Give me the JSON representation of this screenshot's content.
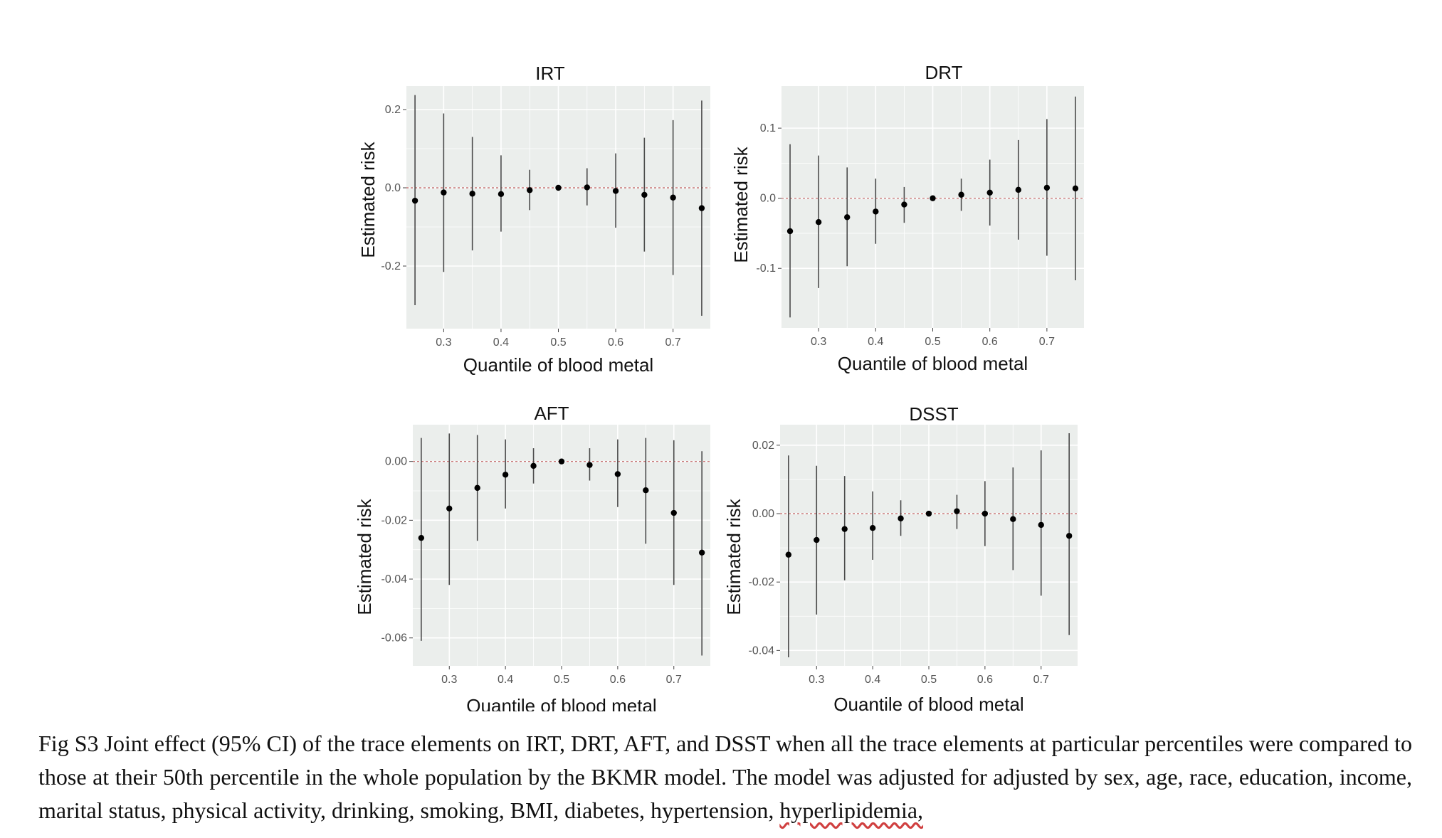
{
  "caption": {
    "text": "Fig S3 Joint effect (95% CI) of the trace elements on IRT, DRT, AFT, and DSST when all the trace elements at particular percentiles were compared to those at their 50th percentile in the whole population by the BKMR model. The model was adjusted for adjusted by sex, age, race, education, income, marital status, physical activity, drinking, smoking, BMI, diabetes, hypertension,",
    "last_word": "hyperlipidemia,"
  },
  "colors": {
    "panel_bg": "#ebeeec",
    "grid": "#ffffff",
    "reference_line": "#c06060",
    "point": "#000000",
    "interval": "#4a4a4a"
  },
  "chart_data": [
    {
      "type": "scatter",
      "title": "IRT",
      "xlabel": "Quantile of blood metal",
      "ylabel": "Estimated risk",
      "xlim": [
        0.235,
        0.765
      ],
      "ylim": [
        -0.36,
        0.26
      ],
      "xticks": [
        0.3,
        0.4,
        0.5,
        0.6,
        0.7
      ],
      "xtick_labels": [
        "0.3",
        "0.4",
        "0.5",
        "0.6",
        "0.7"
      ],
      "yticks": [
        -0.2,
        0.0,
        0.2
      ],
      "ytick_labels": [
        "-0.2",
        "0.0",
        "0.2"
      ],
      "reference_line": 0,
      "grid": true,
      "x": [
        0.25,
        0.3,
        0.35,
        0.4,
        0.45,
        0.5,
        0.55,
        0.6,
        0.65,
        0.7,
        0.75
      ],
      "y": [
        -0.033,
        -0.012,
        -0.015,
        -0.016,
        -0.006,
        0.0,
        0.001,
        -0.008,
        -0.018,
        -0.025,
        -0.052
      ],
      "lower": [
        -0.3,
        -0.215,
        -0.16,
        -0.112,
        -0.057,
        0.0,
        -0.045,
        -0.102,
        -0.163,
        -0.223,
        -0.327
      ],
      "upper": [
        0.237,
        0.19,
        0.13,
        0.083,
        0.046,
        0.0,
        0.05,
        0.088,
        0.128,
        0.173,
        0.223
      ]
    },
    {
      "type": "scatter",
      "title": "DRT",
      "xlabel": "Quantile of blood metal",
      "ylabel": "Estimated risk",
      "xlim": [
        0.235,
        0.765
      ],
      "ylim": [
        -0.185,
        0.16
      ],
      "xticks": [
        0.3,
        0.4,
        0.5,
        0.6,
        0.7
      ],
      "xtick_labels": [
        "0.3",
        "0.4",
        "0.5",
        "0.6",
        "0.7"
      ],
      "yticks": [
        -0.1,
        0.0,
        0.1
      ],
      "ytick_labels": [
        "-0.1",
        "0.0",
        "0.1"
      ],
      "reference_line": 0,
      "grid": true,
      "x": [
        0.25,
        0.3,
        0.35,
        0.4,
        0.45,
        0.5,
        0.55,
        0.6,
        0.65,
        0.7,
        0.75
      ],
      "y": [
        -0.047,
        -0.034,
        -0.027,
        -0.019,
        -0.009,
        0.0,
        0.005,
        0.008,
        0.012,
        0.015,
        0.014
      ],
      "lower": [
        -0.17,
        -0.128,
        -0.097,
        -0.065,
        -0.035,
        0.0,
        -0.018,
        -0.039,
        -0.059,
        -0.082,
        -0.117
      ],
      "upper": [
        0.077,
        0.061,
        0.044,
        0.028,
        0.016,
        0.0,
        0.028,
        0.055,
        0.083,
        0.113,
        0.145
      ]
    },
    {
      "type": "scatter",
      "title": "AFT",
      "xlabel": "Quantile of blood metal",
      "ylabel": "Estimated risk",
      "xlim": [
        0.235,
        0.765
      ],
      "ylim": [
        -0.0695,
        0.0125
      ],
      "xticks": [
        0.3,
        0.4,
        0.5,
        0.6,
        0.7
      ],
      "xtick_labels": [
        "0.3",
        "0.4",
        "0.5",
        "0.6",
        "0.7"
      ],
      "yticks": [
        -0.06,
        -0.04,
        -0.02,
        0.0
      ],
      "ytick_labels": [
        "-0.06",
        "-0.04",
        "-0.02",
        "0.00"
      ],
      "reference_line": 0,
      "grid": true,
      "x": [
        0.25,
        0.3,
        0.35,
        0.4,
        0.45,
        0.5,
        0.55,
        0.6,
        0.65,
        0.7,
        0.75
      ],
      "y": [
        -0.026,
        -0.016,
        -0.009,
        -0.0045,
        -0.0015,
        0.0,
        -0.0012,
        -0.0043,
        -0.0098,
        -0.0175,
        -0.031
      ],
      "lower": [
        -0.061,
        -0.042,
        -0.027,
        -0.016,
        -0.0075,
        0.0,
        -0.0065,
        -0.0155,
        -0.028,
        -0.042,
        -0.066
      ],
      "upper": [
        0.008,
        0.0095,
        0.009,
        0.0075,
        0.0045,
        0.0,
        0.0045,
        0.0075,
        0.008,
        0.0072,
        0.0035
      ]
    },
    {
      "type": "scatter",
      "title": "DSST",
      "xlabel": "Quantile of blood metal",
      "ylabel": "Estimated risk",
      "xlim": [
        0.235,
        0.765
      ],
      "ylim": [
        -0.0445,
        0.026
      ],
      "xticks": [
        0.3,
        0.4,
        0.5,
        0.6,
        0.7
      ],
      "xtick_labels": [
        "0.3",
        "0.4",
        "0.5",
        "0.6",
        "0.7"
      ],
      "yticks": [
        -0.04,
        -0.02,
        0.0,
        0.02
      ],
      "ytick_labels": [
        "-0.04",
        "-0.02",
        "0.00",
        "0.02"
      ],
      "reference_line": 0,
      "grid": true,
      "x": [
        0.25,
        0.3,
        0.35,
        0.4,
        0.45,
        0.5,
        0.55,
        0.6,
        0.65,
        0.7,
        0.75
      ],
      "y": [
        -0.012,
        -0.0077,
        -0.0045,
        -0.0042,
        -0.0014,
        0.0,
        0.0007,
        0.0,
        -0.0016,
        -0.0033,
        -0.0065
      ],
      "lower": [
        -0.042,
        -0.0295,
        -0.0195,
        -0.0135,
        -0.0065,
        0.0,
        -0.0045,
        -0.0095,
        -0.0165,
        -0.024,
        -0.0355
      ],
      "upper": [
        0.017,
        0.014,
        0.011,
        0.0065,
        0.0039,
        0.0,
        0.0055,
        0.0095,
        0.0135,
        0.0185,
        0.0235
      ]
    }
  ]
}
